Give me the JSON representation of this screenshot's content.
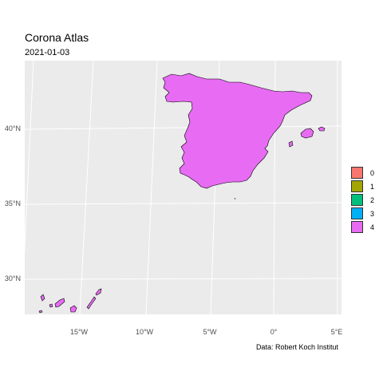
{
  "header": {
    "title": "Corona Atlas",
    "subtitle": "2021-01-03"
  },
  "map": {
    "region": "Spain",
    "fill_color": "#E76BF3",
    "border_color": "#000000",
    "panel_color": "#EBEBEB",
    "y_ticks": [
      "40°N",
      "35°N",
      "30°N"
    ],
    "x_ticks": [
      "15°W",
      "10°W",
      "5°W",
      "0°",
      "5°E"
    ]
  },
  "legend": {
    "items": [
      {
        "label": "0",
        "color": "#F8766D"
      },
      {
        "label": "1",
        "color": "#A3A500"
      },
      {
        "label": "2",
        "color": "#00BF7D"
      },
      {
        "label": "3",
        "color": "#00B0F6"
      },
      {
        "label": "4",
        "color": "#E76BF3"
      }
    ]
  },
  "caption": "Data: Robert Koch Institut"
}
